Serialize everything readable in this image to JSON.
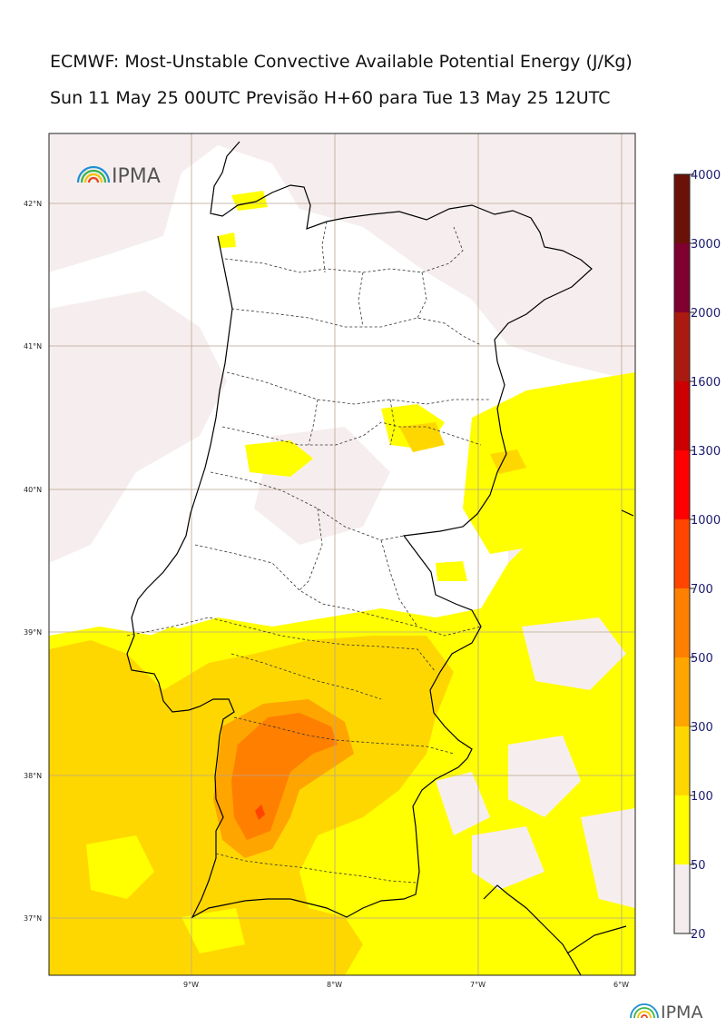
{
  "header": {
    "title": "ECMWF: Most-Unstable Convective Available Potential Energy (J/Kg)",
    "subtitle": "Sun 11 May 25 00UTC Previsão H+60 para Tue 13 May 25 12UTC"
  },
  "logo": {
    "text": "IPMA",
    "icon": "ipma-arc-icon"
  },
  "map": {
    "lat_labels": [
      "42°N",
      "41°N",
      "40°N",
      "39°N",
      "38°N",
      "37°N"
    ],
    "lon_labels": [
      "9°W",
      "8°W",
      "7°W",
      "6°W"
    ],
    "lat_values": [
      42,
      41,
      40,
      39,
      38,
      37
    ],
    "lon_values": [
      -9,
      -8,
      -7,
      -6
    ],
    "extent": {
      "lon_min": -10.0,
      "lon_max": -5.9,
      "lat_min": 36.6,
      "lat_max": 42.5
    }
  },
  "colorbar": {
    "levels": [
      "20",
      "50",
      "100",
      "300",
      "500",
      "700",
      "1000",
      "1300",
      "1600",
      "2000",
      "3000",
      "4000"
    ],
    "colors": [
      "#f5eded",
      "#ffff00",
      "#ffd700",
      "#ffa500",
      "#ff7f00",
      "#ff4500",
      "#ff0000",
      "#cc0000",
      "#aa1a10",
      "#800030",
      "#6b1208"
    ]
  },
  "footer_logo": {
    "text": "IPMA"
  }
}
